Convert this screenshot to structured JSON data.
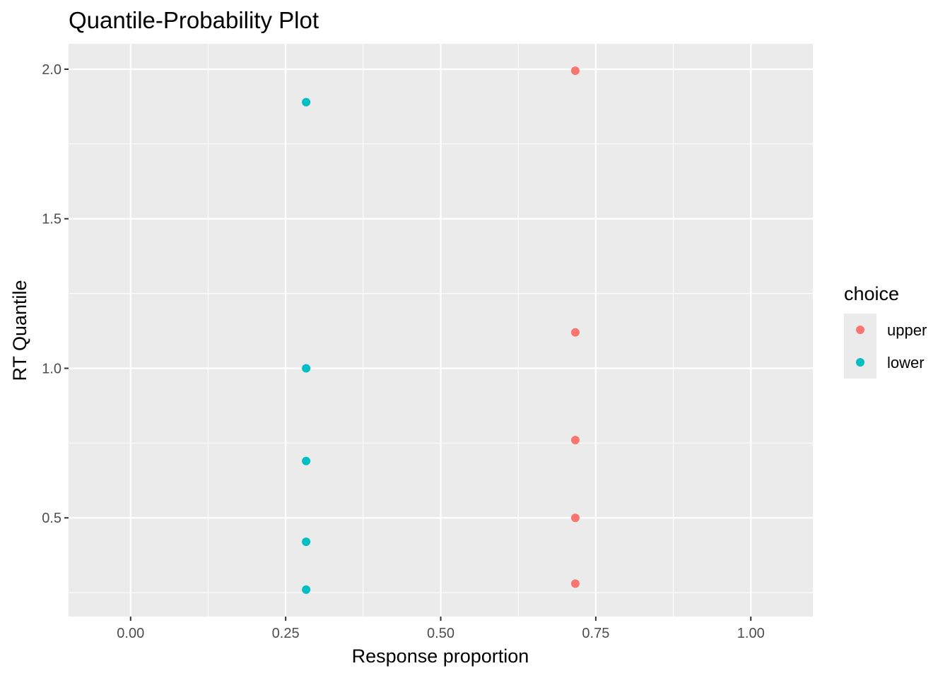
{
  "chart_data": {
    "type": "scatter",
    "title": "Quantile-Probability Plot",
    "xlabel": "Response proportion",
    "ylabel": "RT Quantile",
    "xlim": [
      -0.1,
      1.1
    ],
    "ylim": [
      0.17,
      2.085
    ],
    "x_ticks": [
      0.0,
      0.25,
      0.5,
      0.75,
      1.0
    ],
    "x_tick_labels": [
      "0.00",
      "0.25",
      "0.50",
      "0.75",
      "1.00"
    ],
    "y_ticks": [
      0.5,
      1.0,
      1.5,
      2.0
    ],
    "y_tick_labels": [
      "0.5",
      "1.0",
      "1.5",
      "2.0"
    ],
    "grid": true,
    "background": "#ebebeb",
    "grid_color": "#ffffff",
    "legend": {
      "title": "choice",
      "position": "right",
      "entries": [
        {
          "label": "upper",
          "color": "#f8766d"
        },
        {
          "label": "lower",
          "color": "#00bfc4"
        }
      ]
    },
    "series": [
      {
        "name": "upper",
        "color": "#f8766d",
        "points": [
          {
            "x": 0.717,
            "y": 1.995
          },
          {
            "x": 0.717,
            "y": 1.12
          },
          {
            "x": 0.717,
            "y": 0.76
          },
          {
            "x": 0.717,
            "y": 0.5
          },
          {
            "x": 0.717,
            "y": 0.28
          }
        ]
      },
      {
        "name": "lower",
        "color": "#00bfc4",
        "points": [
          {
            "x": 0.283,
            "y": 1.89
          },
          {
            "x": 0.283,
            "y": 1.0
          },
          {
            "x": 0.283,
            "y": 0.69
          },
          {
            "x": 0.283,
            "y": 0.42
          },
          {
            "x": 0.283,
            "y": 0.26
          }
        ]
      }
    ]
  }
}
